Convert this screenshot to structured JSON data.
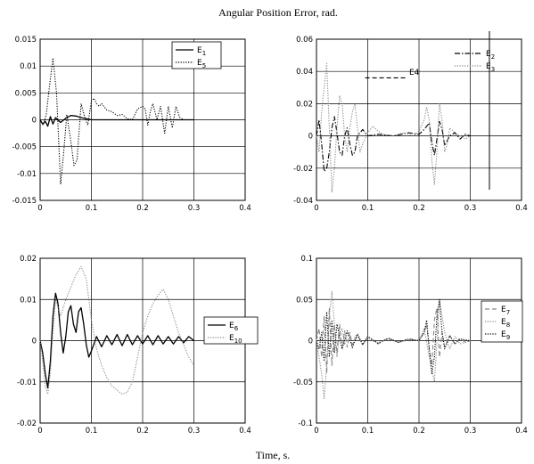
{
  "figure": {
    "title": "Angular Position Error, rad.",
    "xlabel": "Time, s."
  },
  "chart_data": [
    {
      "type": "line",
      "xlim": [
        0,
        0.4
      ],
      "ylim": [
        -0.015,
        0.015
      ],
      "x_ticks": [
        "0",
        "0.1",
        "0.2",
        "0.3",
        "0.4"
      ],
      "y_ticks": [
        "-0.015",
        "-0.01",
        "-0.005",
        "0",
        "0.005",
        "0.01",
        "0.015"
      ],
      "grid": true,
      "legend_position": "top-right",
      "series": [
        {
          "name": "E1",
          "label": "E",
          "sub": "1",
          "style": "solid",
          "color": "#000000",
          "x": [
            0,
            0.005,
            0.01,
            0.015,
            0.02,
            0.025,
            0.03,
            0.04,
            0.05,
            0.06,
            0.07,
            0.08,
            0.09,
            0.1,
            0.12,
            0.15,
            0.2,
            0.25,
            0.3
          ],
          "y": [
            0,
            -0.0008,
            -0.0003,
            -0.0012,
            0.0006,
            -0.0008,
            0.0004,
            -0.0005,
            0.0003,
            0.0008,
            0.0007,
            0.0004,
            0.0002,
            0,
            0,
            0,
            0,
            0,
            0
          ]
        },
        {
          "name": "E5",
          "label": "E",
          "sub": "5",
          "style": "dotted",
          "color": "#000000",
          "x": [
            0,
            0.006,
            0.012,
            0.018,
            0.025,
            0.032,
            0.04,
            0.046,
            0.052,
            0.06,
            0.066,
            0.072,
            0.08,
            0.087,
            0.093,
            0.1,
            0.105,
            0.11,
            0.115,
            0.12,
            0.13,
            0.14,
            0.15,
            0.16,
            0.17,
            0.18,
            0.19,
            0.2,
            0.205,
            0.21,
            0.215,
            0.22,
            0.228,
            0.235,
            0.243,
            0.25,
            0.258,
            0.265,
            0.272,
            0.28
          ],
          "y": [
            0,
            -0.001,
            0.001,
            0.006,
            0.0115,
            0.005,
            -0.012,
            -0.006,
            0.001,
            -0.004,
            -0.0085,
            -0.0075,
            0.003,
            0.0005,
            -0.001,
            0.0035,
            0.004,
            0.003,
            0.0025,
            0.003,
            0.0018,
            0.0015,
            0.0008,
            0.001,
            0.0002,
            0,
            0.002,
            0.0025,
            0.002,
            -0.001,
            0.0015,
            0.003,
            0,
            0.0025,
            -0.0025,
            0.0025,
            -0.0015,
            0.0025,
            0.0005,
            0
          ]
        }
      ]
    },
    {
      "type": "line",
      "xlim": [
        0,
        0.4
      ],
      "ylim": [
        -0.04,
        0.06
      ],
      "x_ticks": [
        "0",
        "0.1",
        "0.2",
        "0.3",
        "0.4"
      ],
      "y_ticks": [
        "-0.04",
        "-0.02",
        "0",
        "0.02",
        "0.04",
        "0.06"
      ],
      "grid": true,
      "legend_position": "top-right",
      "series": [
        {
          "name": "E2",
          "label": "E",
          "sub": "2",
          "style": "dashdot",
          "color": "#000000",
          "x": [
            0,
            0.005,
            0.01,
            0.015,
            0.02,
            0.025,
            0.03,
            0.035,
            0.04,
            0.045,
            0.05,
            0.055,
            0.06,
            0.065,
            0.07,
            0.075,
            0.08,
            0.09,
            0.1,
            0.12,
            0.15,
            0.18,
            0.2,
            0.21,
            0.22,
            0.225,
            0.23,
            0.235,
            0.24,
            0.245,
            0.25,
            0.26,
            0.27,
            0.28,
            0.29,
            0.3
          ],
          "y": [
            0,
            0.01,
            -0.005,
            -0.022,
            -0.02,
            -0.01,
            0.005,
            0.012,
            0.002,
            -0.01,
            -0.012,
            0,
            0.005,
            -0.005,
            -0.012,
            -0.01,
            0,
            0.004,
            0,
            0.001,
            0,
            0.002,
            0.001,
            0.004,
            0.008,
            -0.004,
            -0.012,
            -0.002,
            0.009,
            0.004,
            -0.006,
            0,
            0.002,
            -0.002,
            0.001,
            0
          ]
        },
        {
          "name": "E3",
          "label": "E",
          "sub": "3",
          "style": "dotted",
          "color": "#888888",
          "x": [
            0,
            0.005,
            0.01,
            0.015,
            0.02,
            0.025,
            0.03,
            0.035,
            0.04,
            0.045,
            0.05,
            0.055,
            0.06,
            0.065,
            0.07,
            0.075,
            0.08,
            0.085,
            0.09,
            0.1,
            0.11,
            0.12,
            0.13,
            0.15,
            0.17,
            0.19,
            0.2,
            0.21,
            0.215,
            0.22,
            0.225,
            0.23,
            0.235,
            0.24,
            0.245,
            0.25,
            0.255,
            0.26,
            0.27,
            0.28,
            0.29,
            0.3
          ],
          "y": [
            0,
            -0.01,
            0.015,
            0.03,
            0.045,
            0.005,
            -0.035,
            -0.02,
            0.005,
            0.025,
            0.02,
            0,
            -0.01,
            0.005,
            0.015,
            0.02,
            0.005,
            -0.01,
            -0.005,
            0.002,
            0.006,
            0.003,
            0.001,
            0,
            0.002,
            0,
            0.003,
            0.01,
            0.018,
            0.01,
            -0.015,
            -0.03,
            -0.01,
            0.02,
            0.01,
            -0.01,
            -0.005,
            0.005,
            0.002,
            0,
            -0.002,
            0
          ]
        },
        {
          "name": "E4",
          "label": "E4",
          "style": "dashed",
          "color": "#000000",
          "x": [
            0.095,
            0.178
          ],
          "y": [
            0.036,
            0.036
          ]
        }
      ]
    },
    {
      "type": "line",
      "xlim": [
        0,
        0.4
      ],
      "ylim": [
        -0.02,
        0.02
      ],
      "x_ticks": [
        "0",
        "0.1",
        "0.2",
        "0.3",
        "0.4"
      ],
      "y_ticks": [
        "-0.02",
        "-0.01",
        "0",
        "0.01",
        "0.02"
      ],
      "grid": true,
      "legend_position": "right",
      "series": [
        {
          "name": "E6",
          "label": "E",
          "sub": "6",
          "style": "solid",
          "color": "#000000",
          "x": [
            0,
            0.005,
            0.01,
            0.015,
            0.02,
            0.025,
            0.03,
            0.035,
            0.04,
            0.045,
            0.05,
            0.055,
            0.06,
            0.065,
            0.07,
            0.075,
            0.08,
            0.085,
            0.09,
            0.095,
            0.1,
            0.11,
            0.12,
            0.13,
            0.14,
            0.15,
            0.16,
            0.17,
            0.18,
            0.19,
            0.2,
            0.21,
            0.22,
            0.23,
            0.24,
            0.25,
            0.26,
            0.27,
            0.28,
            0.29,
            0.3
          ],
          "y": [
            0,
            -0.003,
            -0.008,
            -0.0115,
            -0.005,
            0.006,
            0.0115,
            0.009,
            0.002,
            -0.003,
            0.001,
            0.007,
            0.0085,
            0.004,
            0.002,
            0.007,
            0.008,
            0.004,
            -0.001,
            -0.004,
            -0.0025,
            0.001,
            -0.0015,
            0.0012,
            -0.001,
            0.0015,
            -0.0012,
            0.0015,
            -0.001,
            0.0012,
            -0.0008,
            0.0012,
            -0.001,
            0.0012,
            -0.0008,
            0.001,
            -0.0008,
            0.001,
            -0.0005,
            0.001,
            0
          ]
        },
        {
          "name": "E10",
          "label": "E",
          "sub": "10",
          "style": "dotted",
          "color": "#888888",
          "x": [
            0,
            0.005,
            0.01,
            0.015,
            0.02,
            0.025,
            0.03,
            0.04,
            0.05,
            0.06,
            0.07,
            0.08,
            0.09,
            0.1,
            0.11,
            0.12,
            0.13,
            0.14,
            0.15,
            0.16,
            0.17,
            0.18,
            0.19,
            0.2,
            0.21,
            0.22,
            0.23,
            0.24,
            0.25,
            0.26,
            0.27,
            0.28,
            0.29,
            0.3
          ],
          "y": [
            0,
            -0.005,
            -0.011,
            -0.013,
            -0.008,
            0.002,
            0.01,
            0.006,
            0.01,
            0.013,
            0.016,
            0.018,
            0.015,
            0.005,
            -0.002,
            -0.006,
            -0.009,
            -0.011,
            -0.012,
            -0.013,
            -0.0125,
            -0.01,
            -0.004,
            0.002,
            0.006,
            0.009,
            0.011,
            0.0125,
            0.01,
            0.006,
            0.002,
            -0.001,
            -0.004,
            -0.006
          ]
        }
      ]
    },
    {
      "type": "line",
      "xlim": [
        0,
        0.4
      ],
      "ylim": [
        -0.1,
        0.1
      ],
      "x_ticks": [
        "0",
        "0.1",
        "0.2",
        "0.3",
        "0.4"
      ],
      "y_ticks": [
        "-0.1",
        "-0.05",
        "0",
        "0.05",
        "0.1"
      ],
      "grid": true,
      "legend_position": "right",
      "series": [
        {
          "name": "E7",
          "label": "E",
          "sub": "7",
          "style": "dashed",
          "color": "#888888",
          "x": [
            0,
            0.005,
            0.01,
            0.015,
            0.02,
            0.025,
            0.03,
            0.035,
            0.04,
            0.045,
            0.05,
            0.055,
            0.06,
            0.065,
            0.07,
            0.08,
            0.09,
            0.1,
            0.12,
            0.14,
            0.16,
            0.18,
            0.2,
            0.21,
            0.215,
            0.22,
            0.225,
            0.23,
            0.235,
            0.24,
            0.245,
            0.25,
            0.26,
            0.27,
            0.28,
            0.29,
            0.3
          ],
          "y": [
            0,
            0.015,
            -0.02,
            0.03,
            -0.04,
            0.04,
            -0.03,
            0.02,
            -0.015,
            0.02,
            -0.01,
            0.012,
            -0.008,
            0.01,
            -0.005,
            0.006,
            -0.005,
            0.004,
            -0.004,
            0.003,
            -0.002,
            0.002,
            0,
            0.01,
            0.02,
            -0.01,
            -0.03,
            0.025,
            0.04,
            -0.02,
            0.01,
            -0.008,
            0.006,
            -0.004,
            0.003,
            -0.002,
            0
          ]
        },
        {
          "name": "E8",
          "label": "E",
          "sub": "8",
          "style": "dotted",
          "color": "#888888",
          "x": [
            0,
            0.005,
            0.01,
            0.015,
            0.02,
            0.025,
            0.03,
            0.035,
            0.04,
            0.045,
            0.05,
            0.055,
            0.06,
            0.065,
            0.07,
            0.075,
            0.08,
            0.09,
            0.1,
            0.12,
            0.14,
            0.16,
            0.18,
            0.2,
            0.21,
            0.22,
            0.23,
            0.24,
            0.25,
            0.26,
            0.27,
            0.28,
            0.3
          ],
          "y": [
            0,
            -0.02,
            -0.04,
            -0.07,
            -0.03,
            0.03,
            0.06,
            0.02,
            -0.02,
            0.01,
            0.015,
            -0.005,
            0.01,
            0.005,
            -0.01,
            0.005,
            0.008,
            -0.005,
            0.004,
            -0.003,
            0.002,
            -0.002,
            0.001,
            0,
            0.015,
            -0.02,
            -0.05,
            0.05,
            0.01,
            -0.01,
            0.005,
            -0.004,
            0
          ]
        },
        {
          "name": "E9",
          "label": "E",
          "sub": "9",
          "style": "dotted",
          "color": "#000000",
          "x": [
            0,
            0.005,
            0.01,
            0.015,
            0.02,
            0.025,
            0.03,
            0.035,
            0.04,
            0.05,
            0.06,
            0.07,
            0.08,
            0.09,
            0.1,
            0.12,
            0.14,
            0.16,
            0.18,
            0.2,
            0.21,
            0.215,
            0.22,
            0.225,
            0.23,
            0.235,
            0.24,
            0.245,
            0.25,
            0.26,
            0.27,
            0.28,
            0.3
          ],
          "y": [
            0,
            -0.01,
            0.01,
            -0.025,
            0.035,
            -0.02,
            0.025,
            -0.015,
            0.02,
            -0.01,
            0.012,
            -0.008,
            0.008,
            -0.005,
            0.005,
            -0.003,
            0.003,
            -0.002,
            0.002,
            0,
            0.01,
            0.025,
            -0.01,
            -0.04,
            -0.02,
            0.03,
            0.05,
            0.01,
            -0.01,
            0.006,
            -0.004,
            0.002,
            0
          ]
        }
      ]
    }
  ]
}
